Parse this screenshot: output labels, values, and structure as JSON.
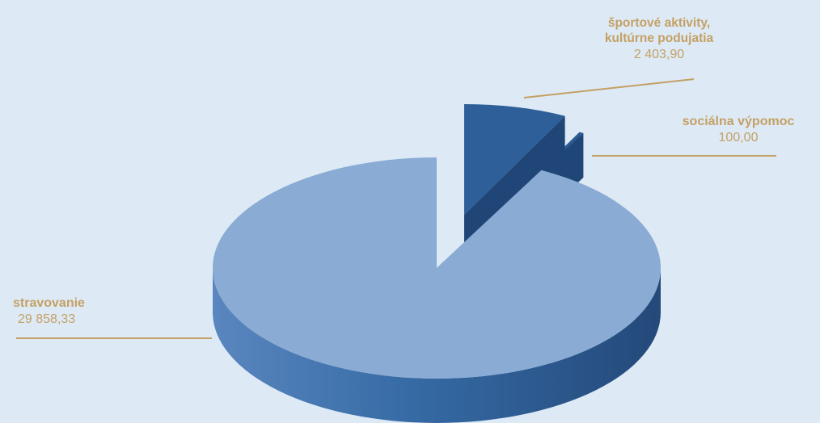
{
  "chart_data": {
    "type": "pie",
    "title": "",
    "style": "3d-exploded",
    "slices": [
      {
        "label": "stravovanie",
        "value_text": "29 858,33",
        "value": 29858.33,
        "color": "#8aabd3"
      },
      {
        "label": "športové aktivity, kultúrne podujatia",
        "label_lines": [
          "športové aktivity,",
          "kultúrne podujatia"
        ],
        "value_text": "2 403,90",
        "value": 2403.9,
        "color": "#2e5f98"
      },
      {
        "label": "sociálna výpomoc",
        "value_text": "100,00",
        "value": 100.0,
        "color": "#2b5a92"
      }
    ],
    "label_color": "#c4a064",
    "background": "#ddeaf6"
  }
}
